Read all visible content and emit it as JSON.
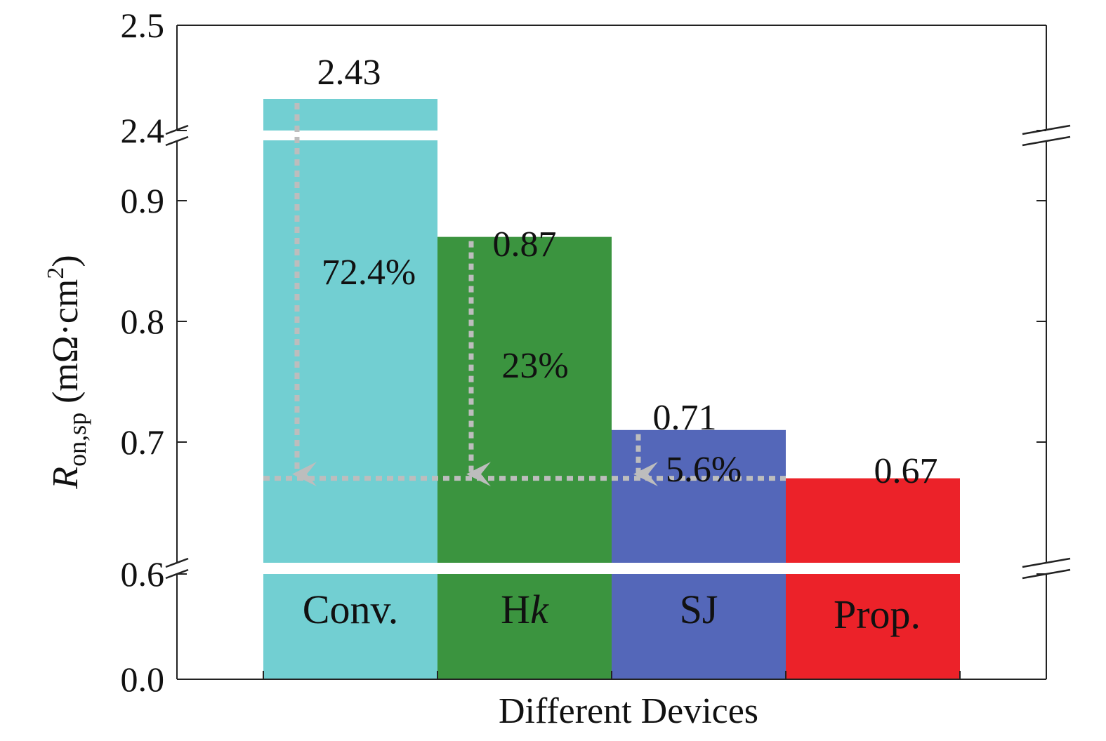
{
  "chart_data": {
    "type": "bar",
    "title": "",
    "xlabel": "Different Devices",
    "ylabel": {
      "symbol": "R",
      "subscript": "on,sp",
      "unit_open": " (mΩ·cm",
      "unit_sup": "2",
      "unit_close": ")"
    },
    "categories": [
      {
        "label": "Conv.",
        "value": 2.43,
        "color": "#72cfd2"
      },
      {
        "label": "H",
        "label_italic": "k",
        "value": 0.87,
        "color": "#3b943f"
      },
      {
        "label": "SJ",
        "value": 0.71,
        "color": "#5467b9"
      },
      {
        "label": "Prop.",
        "value": 0.67,
        "color": "#ec2229"
      }
    ],
    "value_labels": [
      "2.43",
      "0.87",
      "0.71",
      "0.67"
    ],
    "reductions": [
      {
        "from_category": 0,
        "to_value": 0.67,
        "label": "72.4%"
      },
      {
        "from_category": 1,
        "to_value": 0.67,
        "label": "23%"
      },
      {
        "from_category": 2,
        "to_value": 0.67,
        "label": "5.6%"
      }
    ],
    "y_axis": {
      "broken": true,
      "segments": [
        {
          "range": [
            0.0,
            0.6
          ],
          "ticks": [
            "0.0"
          ]
        },
        {
          "range": [
            0.6,
            0.95
          ],
          "ticks": [
            "0.6",
            "0.7",
            "0.8",
            "0.9"
          ]
        },
        {
          "range": [
            2.4,
            2.5
          ],
          "ticks": [
            "2.4",
            "2.5"
          ]
        }
      ]
    },
    "reference_line_value": 0.67,
    "arrow_color": "#bdbdbd",
    "grid": false,
    "legend": "none"
  }
}
